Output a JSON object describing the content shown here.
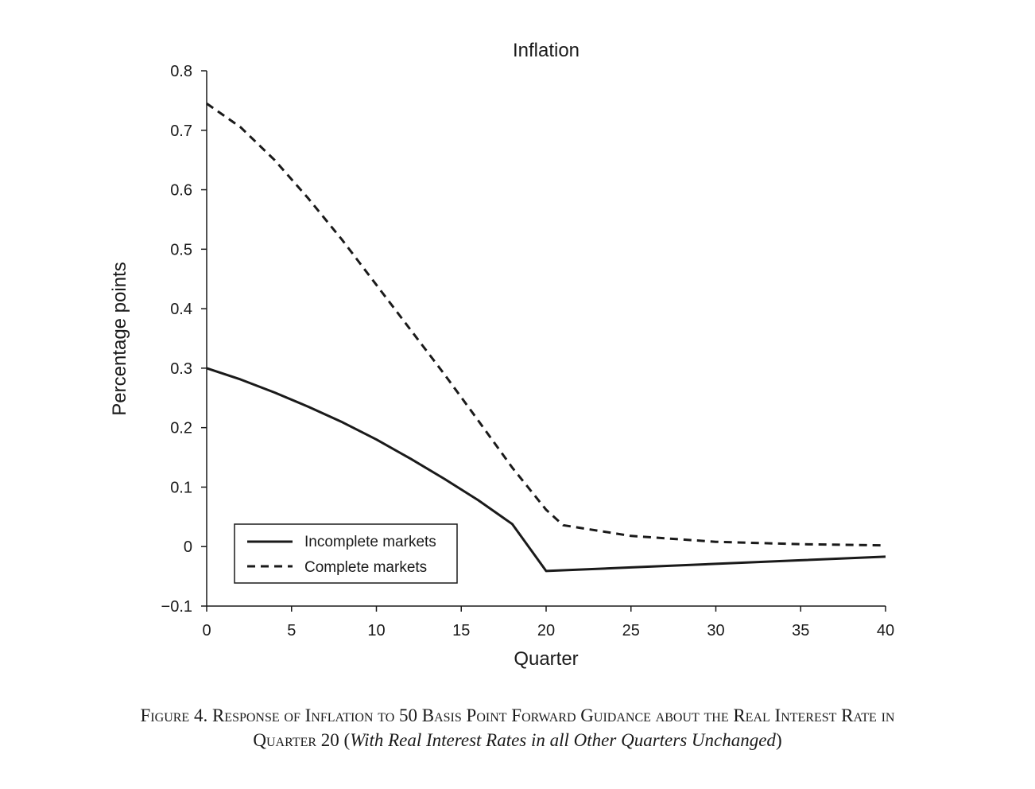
{
  "chart_data": {
    "type": "line",
    "title": "Inflation",
    "xlabel": "Quarter",
    "ylabel": "Percentage points",
    "xlim": [
      0,
      40
    ],
    "ylim": [
      -0.1,
      0.8
    ],
    "xticks": [
      0,
      5,
      10,
      15,
      20,
      25,
      30,
      35,
      40
    ],
    "xtick_labels": [
      "0",
      "5",
      "10",
      "15",
      "20",
      "25",
      "30",
      "35",
      "40"
    ],
    "yticks": [
      -0.1,
      0,
      0.1,
      0.2,
      0.3,
      0.4,
      0.5,
      0.6,
      0.7,
      0.8
    ],
    "ytick_labels": [
      "−0.1",
      "0",
      "0.1",
      "0.2",
      "0.3",
      "0.4",
      "0.5",
      "0.6",
      "0.7",
      "0.8"
    ],
    "grid": false,
    "legend_position": "bottom-left",
    "series": [
      {
        "name": "Incomplete markets",
        "style": "solid",
        "color": "#1a1a1a",
        "x": [
          0,
          2,
          4,
          6,
          8,
          10,
          12,
          14,
          16,
          18,
          20,
          25,
          30,
          35,
          40
        ],
        "y": [
          0.3,
          0.281,
          0.259,
          0.235,
          0.209,
          0.18,
          0.148,
          0.114,
          0.078,
          0.038,
          -0.041,
          -0.035,
          -0.029,
          -0.023,
          -0.017
        ]
      },
      {
        "name": "Complete markets",
        "style": "dashed",
        "color": "#1a1a1a",
        "x": [
          0,
          2,
          4,
          6,
          8,
          10,
          12,
          14,
          16,
          18,
          20,
          21,
          25,
          30,
          35,
          40
        ],
        "y": [
          0.745,
          0.705,
          0.65,
          0.585,
          0.515,
          0.44,
          0.365,
          0.29,
          0.212,
          0.133,
          0.062,
          0.036,
          0.018,
          0.008,
          0.004,
          0.002
        ]
      }
    ]
  },
  "caption": {
    "label": "Figure 4.",
    "line1": "Response of Inflation to 50 Basis Point Forward Guidance about the Real Interest Rate in",
    "line2_start": "Quarter 20 (",
    "line2_italic": "With Real Interest Rates in all Other Quarters Unchanged",
    "line2_end": ")"
  }
}
